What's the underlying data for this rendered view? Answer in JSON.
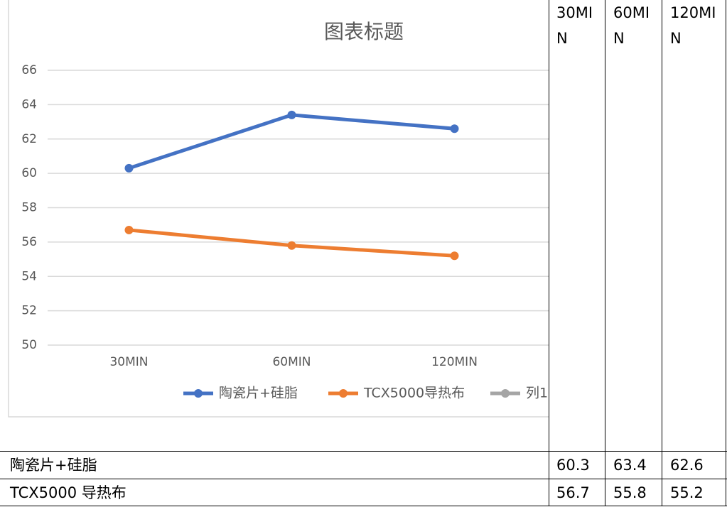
{
  "chart_data": {
    "type": "line",
    "title": "图表标题",
    "categories": [
      "30MIN",
      "60MIN",
      "120MIN"
    ],
    "series": [
      {
        "name": "陶瓷片+硅脂",
        "color": "#4472c4",
        "values": [
          60.3,
          63.4,
          62.6
        ]
      },
      {
        "name": "TCX5000导热布",
        "color": "#ed7d31",
        "values": [
          56.7,
          55.8,
          55.2
        ]
      },
      {
        "name": "列1",
        "color": "#a5a5a5",
        "values": [
          null,
          null,
          null
        ]
      }
    ],
    "ylim": [
      50,
      66
    ],
    "yticks": [
      50,
      52,
      54,
      56,
      58,
      60,
      62,
      64,
      66
    ],
    "grid": true,
    "legend": "bottom"
  },
  "table": {
    "columns": [
      "30MIN",
      "60MIN",
      "120MIN"
    ],
    "rows": [
      [
        "陶瓷片+硅脂",
        "60.3",
        "63.4",
        "62.6"
      ],
      [
        "TCX5000 导热布",
        "56.7",
        "55.8",
        "55.2"
      ]
    ]
  }
}
